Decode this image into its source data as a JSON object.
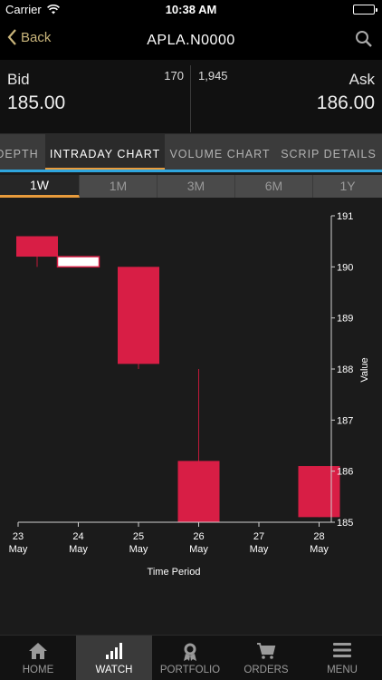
{
  "status_bar": {
    "carrier": "Carrier",
    "time": "10:38 AM"
  },
  "nav": {
    "back_label": "Back",
    "title": "APLA.N0000"
  },
  "quote": {
    "bid_label": "Bid",
    "bid_qty": "170",
    "bid_price": "185.00",
    "ask_qty": "1,945",
    "ask_label": "Ask",
    "ask_price": "186.00"
  },
  "tabs": [
    {
      "label": "DEPTH",
      "active": false
    },
    {
      "label": "INTRADAY CHART",
      "active": true
    },
    {
      "label": "VOLUME CHART",
      "active": false
    },
    {
      "label": "SCRIP DETAILS",
      "active": false
    }
  ],
  "periods": [
    {
      "label": "1W",
      "active": true
    },
    {
      "label": "1M",
      "active": false
    },
    {
      "label": "3M",
      "active": false
    },
    {
      "label": "6M",
      "active": false
    },
    {
      "label": "1Y",
      "active": false
    }
  ],
  "chart_data": {
    "type": "candlestick",
    "xlabel": "Time Period",
    "ylabel": "Value",
    "ylim": [
      185,
      191
    ],
    "y_ticks": [
      "191",
      "190",
      "189",
      "188",
      "187",
      "186",
      "185"
    ],
    "x_ticks": [
      {
        "day": "23",
        "month": "May"
      },
      {
        "day": "24",
        "month": "May"
      },
      {
        "day": "25",
        "month": "May"
      },
      {
        "day": "26",
        "month": "May"
      },
      {
        "day": "27",
        "month": "May"
      },
      {
        "day": "28",
        "month": "May"
      }
    ],
    "candles": [
      {
        "date": "23 May",
        "open": 190.6,
        "high": 190.6,
        "low": 190.0,
        "close": 190.2,
        "color": "#d81e45"
      },
      {
        "date": "24 May",
        "open": 190.2,
        "high": 190.2,
        "low": 190.0,
        "close": 190.0,
        "color": "#ffffff"
      },
      {
        "date": "25 May",
        "open": 190.0,
        "high": 190.0,
        "low": 188.0,
        "close": 188.1,
        "color": "#d81e45"
      },
      {
        "date": "26 May",
        "open": 186.2,
        "high": 188.0,
        "low": 185.0,
        "close": 185.0,
        "color": "#d81e45"
      },
      {
        "date": "28 May",
        "open": 186.1,
        "high": 186.1,
        "low": 185.1,
        "close": 185.1,
        "color": "#d81e45"
      }
    ],
    "grid": false
  },
  "tabbar": [
    {
      "label": "HOME",
      "icon": "home-icon",
      "active": false
    },
    {
      "label": "WATCH",
      "icon": "bar-chart-icon",
      "active": true
    },
    {
      "label": "PORTFOLIO",
      "icon": "award-icon",
      "active": false
    },
    {
      "label": "ORDERS",
      "icon": "cart-icon",
      "active": false
    },
    {
      "label": "MENU",
      "icon": "menu-icon",
      "active": false
    }
  ],
  "colors": {
    "accent_blue": "#2fa6de",
    "accent_orange": "#e89b3c",
    "back_gold": "#c9b57b",
    "candle_red": "#d81e45"
  }
}
